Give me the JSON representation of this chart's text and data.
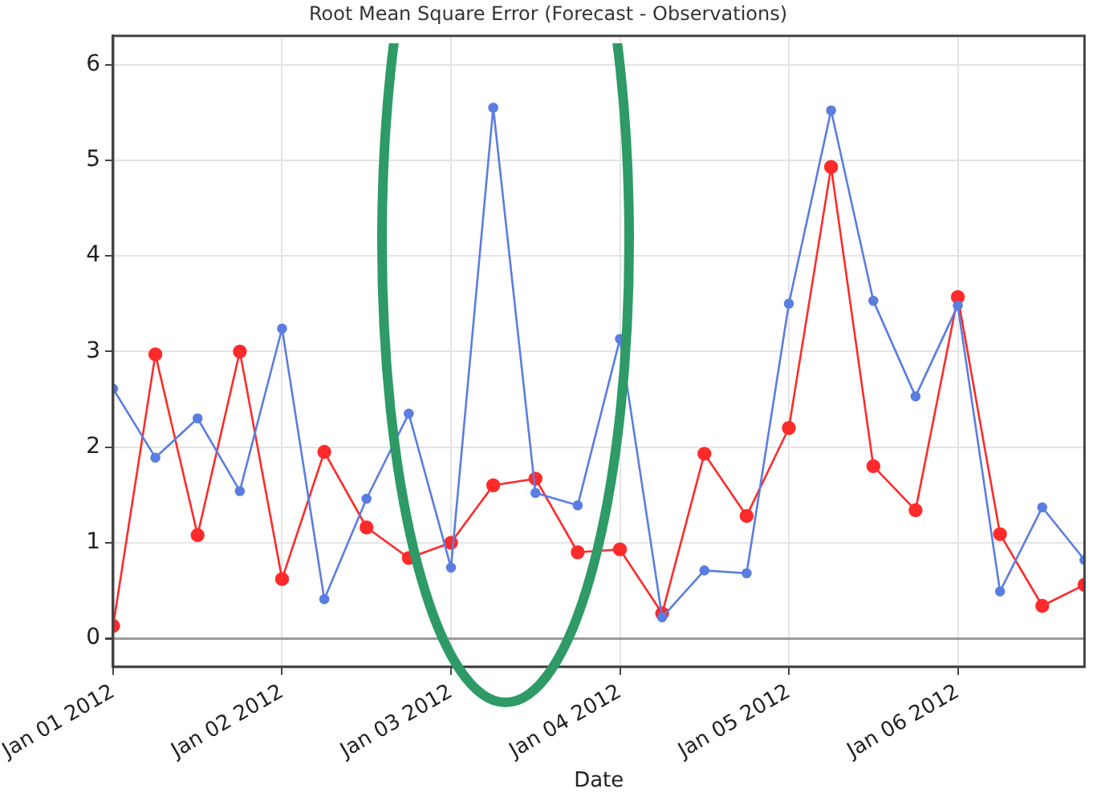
{
  "chart_data": {
    "type": "line",
    "title": "Root Mean Square Error (Forecast - Observations)",
    "xlabel": "Date",
    "x": [
      "2012-01-01T00:00",
      "2012-01-01T06:00",
      "2012-01-01T12:00",
      "2012-01-01T18:00",
      "2012-01-02T00:00",
      "2012-01-02T06:00",
      "2012-01-02T12:00",
      "2012-01-02T18:00",
      "2012-01-03T00:00",
      "2012-01-03T06:00",
      "2012-01-03T12:00",
      "2012-01-03T18:00",
      "2012-01-04T00:00",
      "2012-01-04T06:00",
      "2012-01-04T12:00",
      "2012-01-04T18:00",
      "2012-01-05T00:00",
      "2012-01-05T06:00",
      "2012-01-05T12:00",
      "2012-01-05T18:00",
      "2012-01-06T00:00",
      "2012-01-06T06:00",
      "2012-01-06T12:00",
      "2012-01-06T18:00"
    ],
    "series": [
      {
        "color": "#5a7de0",
        "values": [
          2.61,
          1.89,
          2.3,
          1.54,
          3.24,
          0.41,
          1.46,
          2.35,
          0.74,
          5.55,
          1.52,
          1.39,
          3.13,
          0.22,
          0.71,
          0.68,
          3.5,
          5.52,
          3.53,
          2.53,
          3.48,
          0.49,
          1.37,
          0.82
        ]
      },
      {
        "color": "#ff2a2a",
        "values": [
          0.13,
          2.97,
          1.08,
          3.0,
          0.62,
          1.95,
          1.16,
          0.84,
          1.0,
          1.6,
          1.67,
          0.9,
          0.93,
          0.26,
          1.93,
          1.28,
          2.2,
          4.93,
          1.8,
          1.34,
          3.57,
          1.09,
          0.34,
          0.56
        ]
      }
    ],
    "xlim": [
      "2012-01-01T00:00",
      "2012-01-06T18:00"
    ],
    "xticks": [
      {
        "value": "2012-01-01",
        "label": "Jan 01 2012"
      },
      {
        "value": "2012-01-02",
        "label": "Jan 02 2012"
      },
      {
        "value": "2012-01-03",
        "label": "Jan 03 2012"
      },
      {
        "value": "2012-01-04",
        "label": "Jan 04 2012"
      },
      {
        "value": "2012-01-05",
        "label": "Jan 05 2012"
      },
      {
        "value": "2012-01-06",
        "label": "Jan 06 2012"
      }
    ],
    "ylim": [
      -0.3,
      6.3
    ],
    "yticks": [
      0,
      1,
      2,
      3,
      4,
      5,
      6
    ],
    "grid": true,
    "marker": "circle",
    "line_style": "solid"
  }
}
